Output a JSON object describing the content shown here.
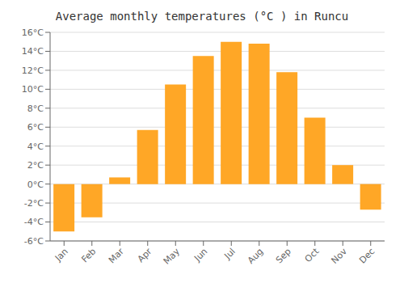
{
  "chart_data": {
    "type": "bar",
    "title": "Average monthly temperatures (°C ) in Runcu",
    "categories": [
      "Jan",
      "Feb",
      "Mar",
      "Apr",
      "May",
      "Jun",
      "Jul",
      "Aug",
      "Sep",
      "Oct",
      "Nov",
      "Dec"
    ],
    "values": [
      -5.0,
      -3.5,
      0.7,
      5.7,
      10.5,
      13.5,
      15.0,
      14.8,
      11.8,
      7.0,
      2.0,
      -2.7
    ],
    "color": "#FFA726",
    "ylim": [
      -6,
      16
    ],
    "yticks": [
      {
        "value": -6,
        "label": "-6°C"
      },
      {
        "value": -4,
        "label": "-4°C"
      },
      {
        "value": -2,
        "label": "-2°C"
      },
      {
        "value": 0,
        "label": "0°C"
      },
      {
        "value": 2,
        "label": "2°C"
      },
      {
        "value": 4,
        "label": "4°C"
      },
      {
        "value": 6,
        "label": "6°C"
      },
      {
        "value": 8,
        "label": "8°C"
      },
      {
        "value": 10,
        "label": "10°C"
      },
      {
        "value": 12,
        "label": "12°C"
      },
      {
        "value": 14,
        "label": "14°C"
      },
      {
        "value": 16,
        "label": "16°C"
      }
    ],
    "grid": true
  }
}
